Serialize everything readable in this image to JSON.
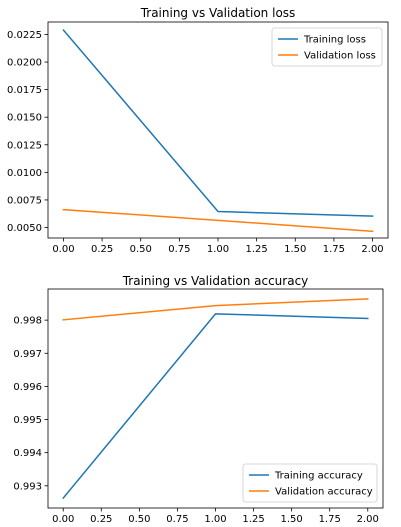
{
  "chart_data": [
    {
      "type": "line",
      "title": "Training vs Validation loss",
      "xlabel": "",
      "ylabel": "",
      "x": [
        0,
        1,
        2
      ],
      "series": [
        {
          "name": "Training loss",
          "values": [
            0.0229,
            0.00645,
            0.00603
          ],
          "color": "#1f77b4"
        },
        {
          "name": "Validation loss",
          "values": [
            0.00662,
            0.00565,
            0.00465
          ],
          "color": "#ff7f0e"
        }
      ],
      "xlim": [
        -0.1,
        2.1
      ],
      "ylim": [
        0.00405,
        0.02363
      ],
      "xticks": [
        0,
        0.25,
        0.5,
        0.75,
        1,
        1.25,
        1.5,
        1.75,
        2
      ],
      "xtick_labels": [
        "0.00",
        "0.25",
        "0.50",
        "0.75",
        "1.00",
        "1.25",
        "1.50",
        "1.75",
        "2.00"
      ],
      "yticks": [
        0.005,
        0.0075,
        0.01,
        0.0125,
        0.015,
        0.0175,
        0.02,
        0.0225
      ],
      "ytick_labels": [
        "0.0050",
        "0.0075",
        "0.0100",
        "0.0125",
        "0.0150",
        "0.0175",
        "0.0200",
        "0.0225"
      ],
      "grid": false,
      "legend": "top-right"
    },
    {
      "type": "line",
      "title": "Training vs Validation accuracy",
      "xlabel": "",
      "ylabel": "",
      "x": [
        0,
        1,
        2
      ],
      "series": [
        {
          "name": "Training accuracy",
          "values": [
            0.99263,
            0.99819,
            0.99805
          ],
          "color": "#1f77b4"
        },
        {
          "name": "Validation accuracy",
          "values": [
            0.99801,
            0.99844,
            0.99864
          ],
          "color": "#ff7f0e"
        }
      ],
      "xlim": [
        -0.1,
        2.1
      ],
      "ylim": [
        0.99233,
        0.99894
      ],
      "xticks": [
        0,
        0.25,
        0.5,
        0.75,
        1,
        1.25,
        1.5,
        1.75,
        2
      ],
      "xtick_labels": [
        "0.00",
        "0.25",
        "0.50",
        "0.75",
        "1.00",
        "1.25",
        "1.50",
        "1.75",
        "2.00"
      ],
      "yticks": [
        0.993,
        0.994,
        0.995,
        0.996,
        0.997,
        0.998
      ],
      "ytick_labels": [
        "0.993",
        "0.994",
        "0.995",
        "0.996",
        "0.997",
        "0.998"
      ],
      "grid": false,
      "legend": "bottom-right"
    }
  ]
}
